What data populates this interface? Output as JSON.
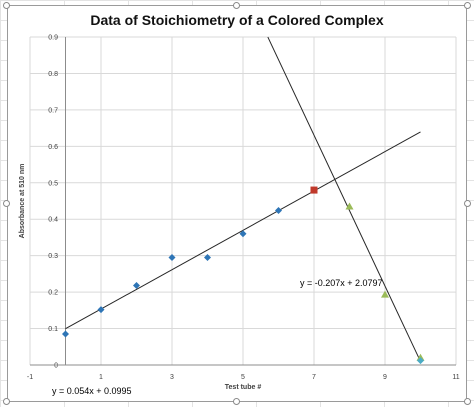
{
  "chart_data": {
    "type": "scatter",
    "title": "Data of Stoichiometry of a Colored Complex",
    "xlabel": "Test tube #",
    "ylabel": "Absorbance at 510 nm",
    "xlim": [
      -1,
      11
    ],
    "ylim": [
      0,
      0.9
    ],
    "x_ticks": [
      "-1",
      "1",
      "3",
      "5",
      "7",
      "9",
      "11"
    ],
    "x_tick_values": [
      -1,
      1,
      3,
      5,
      7,
      9,
      11
    ],
    "y_ticks": [
      "0",
      "0.1",
      "0.2",
      "0.3",
      "0.4",
      "0.5",
      "0.6",
      "0.7",
      "0.8",
      "0.9"
    ],
    "y_tick_values": [
      0,
      0.1,
      0.2,
      0.3,
      0.4,
      0.5,
      0.6,
      0.7,
      0.8,
      0.9
    ],
    "grid": "vertical and horizontal major gridlines",
    "series": [
      {
        "marker": "diamond",
        "color": "#2e75b6",
        "points": [
          [
            0,
            0.085
          ],
          [
            1,
            0.152
          ],
          [
            2,
            0.218
          ],
          [
            3,
            0.295
          ],
          [
            4,
            0.295
          ],
          [
            5,
            0.36
          ],
          [
            6,
            0.424
          ]
        ]
      },
      {
        "marker": "square",
        "color": "#c0392b",
        "points": [
          [
            7,
            0.48
          ]
        ]
      },
      {
        "marker": "triangle",
        "color": "#9bbb59",
        "points": [
          [
            8,
            0.435
          ],
          [
            9,
            0.193
          ],
          [
            10,
            0.02
          ]
        ]
      },
      {
        "marker": "diamond",
        "color": "#4bacc6",
        "points": [
          [
            10,
            0.012
          ]
        ]
      }
    ],
    "trendlines": [
      {
        "slope": 0.054,
        "intercept": 0.0995,
        "x_range": [
          0,
          10
        ],
        "label": "y = 0.054x + 0.0995"
      },
      {
        "slope": -0.207,
        "intercept": 2.0797,
        "x_range": [
          5.7,
          10
        ],
        "label": "y = -0.207x + 2.0797"
      }
    ]
  }
}
